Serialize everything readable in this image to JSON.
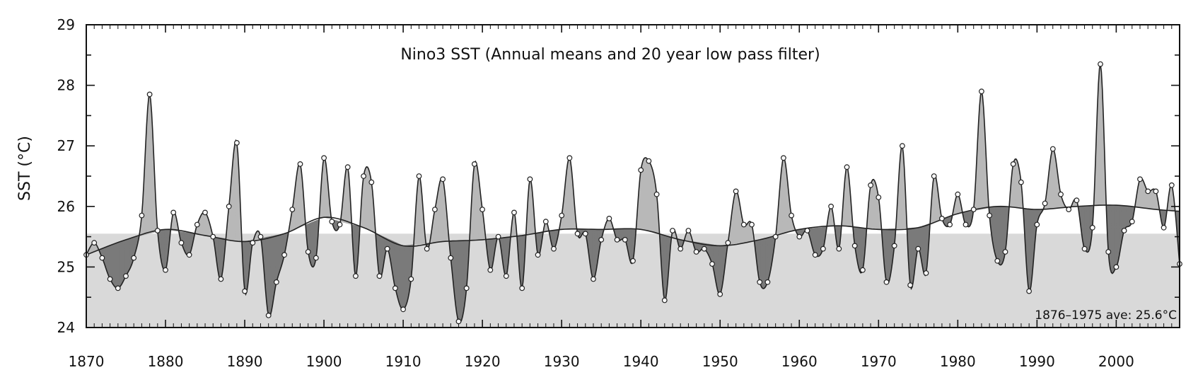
{
  "chart_data": {
    "type": "line",
    "title": "Nino3 SST (Annual means and 20 year low pass filter)",
    "xlabel": "",
    "ylabel": "SST (°C)",
    "xlim": [
      1870,
      2008
    ],
    "ylim": [
      24,
      29
    ],
    "x_ticks": [
      1870,
      1880,
      1890,
      1900,
      1910,
      1920,
      1930,
      1940,
      1950,
      1960,
      1970,
      1980,
      1990,
      2000
    ],
    "x_tick_labels": [
      "1870",
      "1880",
      "1890",
      "1900",
      "1910",
      "1920",
      "1930",
      "1940",
      "1950",
      "1960",
      "1970",
      "1980",
      "1990",
      "2000"
    ],
    "y_ticks": [
      24,
      25,
      26,
      27,
      28,
      29
    ],
    "y_tick_labels": [
      "24",
      "25",
      "26",
      "27",
      "28",
      "29"
    ],
    "reference_band": {
      "from": 24,
      "to": 25.55
    },
    "annotation": "1876–1975 ave: 25.6°C",
    "series": [
      {
        "kind": "annual_means",
        "x": [
          1870,
          1871,
          1872,
          1873,
          1874,
          1875,
          1876,
          1877,
          1878,
          1879,
          1880,
          1881,
          1882,
          1883,
          1884,
          1885,
          1886,
          1887,
          1888,
          1889,
          1890,
          1891,
          1892,
          1893,
          1894,
          1895,
          1896,
          1897,
          1898,
          1899,
          1900,
          1901,
          1902,
          1903,
          1904,
          1905,
          1906,
          1907,
          1908,
          1909,
          1910,
          1911,
          1912,
          1913,
          1914,
          1915,
          1916,
          1917,
          1918,
          1919,
          1920,
          1921,
          1922,
          1923,
          1924,
          1925,
          1926,
          1927,
          1928,
          1929,
          1930,
          1931,
          1932,
          1933,
          1934,
          1935,
          1936,
          1937,
          1938,
          1939,
          1940,
          1941,
          1942,
          1943,
          1944,
          1945,
          1946,
          1947,
          1948,
          1949,
          1950,
          1951,
          1952,
          1953,
          1954,
          1955,
          1956,
          1957,
          1958,
          1959,
          1960,
          1961,
          1962,
          1963,
          1964,
          1965,
          1966,
          1967,
          1968,
          1969,
          1970,
          1971,
          1972,
          1973,
          1974,
          1975,
          1976,
          1977,
          1978,
          1979,
          1980,
          1981,
          1982,
          1983,
          1984,
          1985,
          1986,
          1987,
          1988,
          1989,
          1990,
          1991,
          1992,
          1993,
          1994,
          1995,
          1996,
          1997,
          1998,
          1999,
          2000,
          2001,
          2002,
          2003,
          2004,
          2005,
          2006,
          2007,
          2008
        ],
        "values": [
          25.2,
          25.4,
          25.15,
          24.8,
          24.65,
          24.85,
          25.15,
          25.85,
          27.85,
          25.6,
          24.95,
          25.9,
          25.4,
          25.2,
          25.7,
          25.9,
          25.5,
          24.8,
          26.0,
          27.05,
          24.6,
          25.4,
          25.5,
          24.2,
          24.75,
          25.2,
          25.95,
          26.7,
          25.25,
          25.15,
          26.8,
          25.75,
          25.7,
          26.65,
          24.85,
          26.5,
          26.4,
          24.85,
          25.3,
          24.65,
          24.3,
          24.8,
          26.5,
          25.3,
          25.95,
          26.45,
          25.15,
          24.1,
          24.65,
          26.7,
          25.95,
          24.95,
          25.5,
          24.85,
          25.9,
          24.65,
          26.45,
          25.2,
          25.75,
          25.3,
          25.85,
          26.8,
          25.55,
          25.55,
          24.8,
          25.45,
          25.8,
          25.45,
          25.45,
          25.1,
          26.6,
          26.75,
          26.2,
          24.45,
          25.6,
          25.3,
          25.6,
          25.25,
          25.3,
          25.05,
          24.55,
          25.4,
          26.25,
          25.7,
          25.7,
          24.75,
          24.75,
          25.5,
          26.8,
          25.85,
          25.5,
          25.6,
          25.2,
          25.3,
          26.0,
          25.3,
          26.65,
          25.35,
          24.95,
          26.35,
          26.15,
          24.75,
          25.35,
          27.0,
          24.7,
          25.3,
          24.9,
          26.5,
          25.8,
          25.7,
          26.2,
          25.7,
          25.95,
          27.9,
          25.85,
          25.1,
          25.25,
          26.7,
          26.4,
          24.6,
          25.7,
          26.05,
          26.95,
          26.2,
          25.95,
          26.1,
          25.3,
          25.65,
          28.35,
          25.25,
          25.0,
          25.6,
          25.75,
          26.45,
          26.25,
          26.25,
          25.65,
          26.35,
          25.05
        ]
      },
      {
        "kind": "low_pass_filter",
        "x": [
          1870,
          1875,
          1880,
          1885,
          1890,
          1895,
          1900,
          1905,
          1910,
          1915,
          1920,
          1925,
          1930,
          1935,
          1940,
          1945,
          1950,
          1955,
          1960,
          1965,
          1970,
          1975,
          1980,
          1985,
          1990,
          1995,
          2000,
          2005,
          2008
        ],
        "values": [
          25.2,
          25.45,
          25.62,
          25.52,
          25.42,
          25.55,
          25.82,
          25.65,
          25.35,
          25.42,
          25.45,
          25.52,
          25.62,
          25.62,
          25.62,
          25.45,
          25.35,
          25.45,
          25.62,
          25.68,
          25.62,
          25.65,
          25.88,
          26.0,
          25.95,
          26.0,
          26.02,
          25.95,
          25.92
        ]
      }
    ]
  }
}
